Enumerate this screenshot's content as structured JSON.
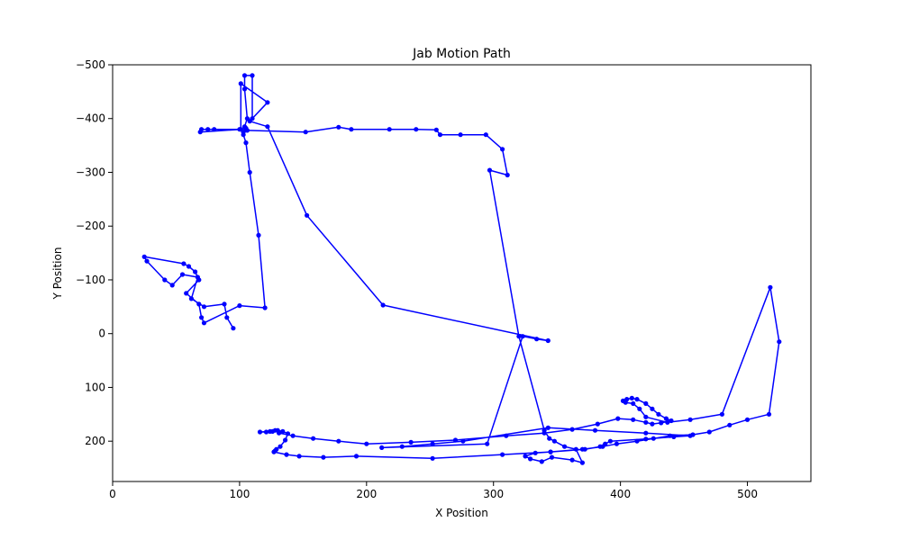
{
  "chart_data": {
    "type": "line",
    "title": "Jab Motion Path",
    "xlabel": "X Position",
    "ylabel": "Y Position",
    "xlim": [
      0,
      550
    ],
    "ylim": [
      275,
      -500
    ],
    "y_inverted": true,
    "xticks": [
      0,
      100,
      200,
      300,
      400,
      500
    ],
    "yticks": [
      -500,
      -400,
      -300,
      -200,
      -100,
      0,
      100,
      200
    ],
    "xtick_labels": [
      "0",
      "100",
      "200",
      "300",
      "400",
      "500"
    ],
    "ytick_labels": [
      "−500",
      "−400",
      "−300",
      "−200",
      "−100",
      "0",
      "100",
      "200"
    ],
    "grid": false,
    "line_color": "#0000ff",
    "marker": "circle",
    "series": [
      {
        "x": [
          95,
          90,
          88,
          72,
          62,
          67,
          55,
          47,
          41,
          27,
          25,
          56,
          60,
          65,
          68,
          58,
          68,
          70,
          72,
          100,
          120,
          115,
          108,
          105,
          103,
          104,
          106,
          104,
          104,
          110,
          110,
          122,
          101,
          101,
          69,
          70,
          75,
          80,
          100,
          105,
          103,
          106,
          152,
          178,
          188,
          218,
          239,
          255,
          258,
          274,
          294,
          307,
          311,
          297,
          320,
          340,
          344,
          348,
          356,
          365,
          370,
          362,
          346,
          338,
          329,
          325,
          333,
          345,
          370,
          386,
          397,
          413,
          426,
          439,
          457,
          470,
          486,
          500,
          517,
          525,
          518,
          480,
          455,
          437,
          420,
          415,
          410,
          404,
          402,
          405,
          409,
          413,
          420,
          425,
          430,
          436,
          440,
          432,
          425,
          420,
          410,
          398,
          382,
          362,
          340,
          310,
          270,
          235,
          200,
          178,
          158,
          142,
          131,
          128,
          124,
          116,
          121,
          126,
          130,
          134,
          138,
          136,
          132,
          129,
          128,
          127,
          137,
          147,
          166,
          192,
          252,
          307,
          345,
          372,
          384,
          388,
          392,
          420,
          442,
          455,
          420,
          380,
          343,
          276,
          252,
          228,
          212,
          295,
          323,
          334,
          343,
          213,
          153,
          122,
          108
        ],
        "y": [
          -10,
          -30,
          -55,
          -50,
          -65,
          -105,
          -110,
          -90,
          -100,
          -135,
          -143,
          -130,
          -125,
          -115,
          -100,
          -75,
          -55,
          -30,
          -20,
          -52,
          -48,
          -183,
          -300,
          -355,
          -370,
          -385,
          -400,
          -455,
          -480,
          -480,
          -400,
          -430,
          -465,
          -380,
          -375,
          -380,
          -380,
          -380,
          -380,
          -382,
          -375,
          -378,
          -375,
          -384,
          -380,
          -380,
          -380,
          -379,
          -370,
          -370,
          -370,
          -343,
          -295,
          -304,
          5,
          180,
          195,
          200,
          210,
          215,
          240,
          235,
          230,
          238,
          233,
          228,
          222,
          220,
          215,
          210,
          205,
          200,
          195,
          190,
          188,
          183,
          170,
          160,
          150,
          15,
          -86,
          150,
          160,
          165,
          155,
          140,
          130,
          128,
          125,
          122,
          120,
          122,
          130,
          140,
          150,
          158,
          162,
          166,
          168,
          165,
          160,
          158,
          168,
          178,
          185,
          190,
          198,
          202,
          205,
          200,
          195,
          190,
          185,
          180,
          182,
          183,
          183,
          182,
          180,
          182,
          186,
          198,
          210,
          215,
          218,
          220,
          225,
          228,
          230,
          228,
          232,
          225,
          220,
          215,
          210,
          205,
          200,
          196,
          192,
          190,
          185,
          180,
          175,
          200,
          205,
          210,
          212,
          205,
          5,
          10,
          13,
          -53,
          -220,
          -385,
          -395
        ]
      }
    ]
  }
}
